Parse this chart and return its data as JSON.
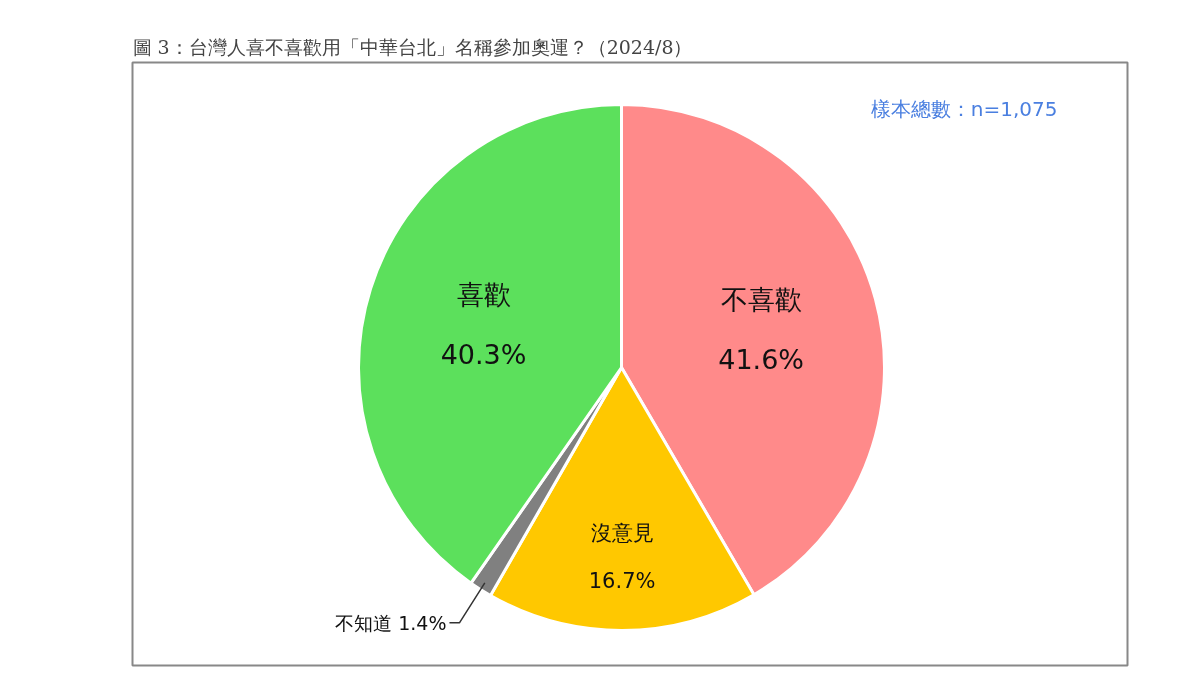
{
  "chart_data": {
    "type": "pie",
    "title": "圖 3：台灣人喜不喜歡用「中華台北」名稱參加奧運？（2024/8）",
    "categories": [
      "不喜歡",
      "沒意見",
      "不知道",
      "喜歡"
    ],
    "values": [
      41.6,
      16.7,
      1.4,
      40.3
    ],
    "colors": [
      "#ff8a8a",
      "#ffc800",
      "#808080",
      "#5ce05c"
    ],
    "value_labels": [
      "41.6%",
      "16.7%",
      "1.4%",
      "40.3%"
    ],
    "annotations": [
      "樣本總數：n=1,075"
    ]
  }
}
